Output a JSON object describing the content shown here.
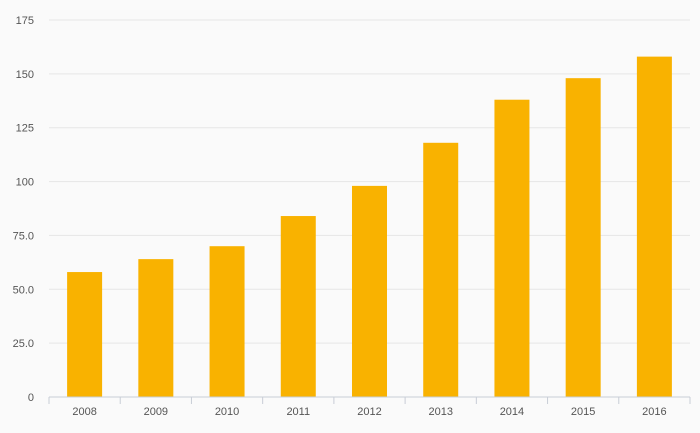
{
  "chart_data": {
    "type": "bar",
    "title": "",
    "xlabel": "",
    "ylabel": "",
    "categories": [
      "2008",
      "2009",
      "2010",
      "2011",
      "2012",
      "2013",
      "2014",
      "2015",
      "2016"
    ],
    "values": [
      58,
      64,
      70,
      84,
      98,
      118,
      138,
      148,
      158
    ],
    "ylim": [
      0,
      175
    ],
    "y_ticks": [
      0,
      25,
      50,
      75,
      100,
      125,
      150,
      175
    ],
    "y_tick_labels": [
      "0",
      "25.0",
      "50.0",
      "75.0",
      "100",
      "125",
      "150",
      "175"
    ],
    "grid": true,
    "legend": "none",
    "colors": {
      "bar": "#f9b200",
      "grid": "#e6e6e6",
      "axis": "#c8cdd6",
      "text": "#555555",
      "background": "#fafafa"
    }
  }
}
